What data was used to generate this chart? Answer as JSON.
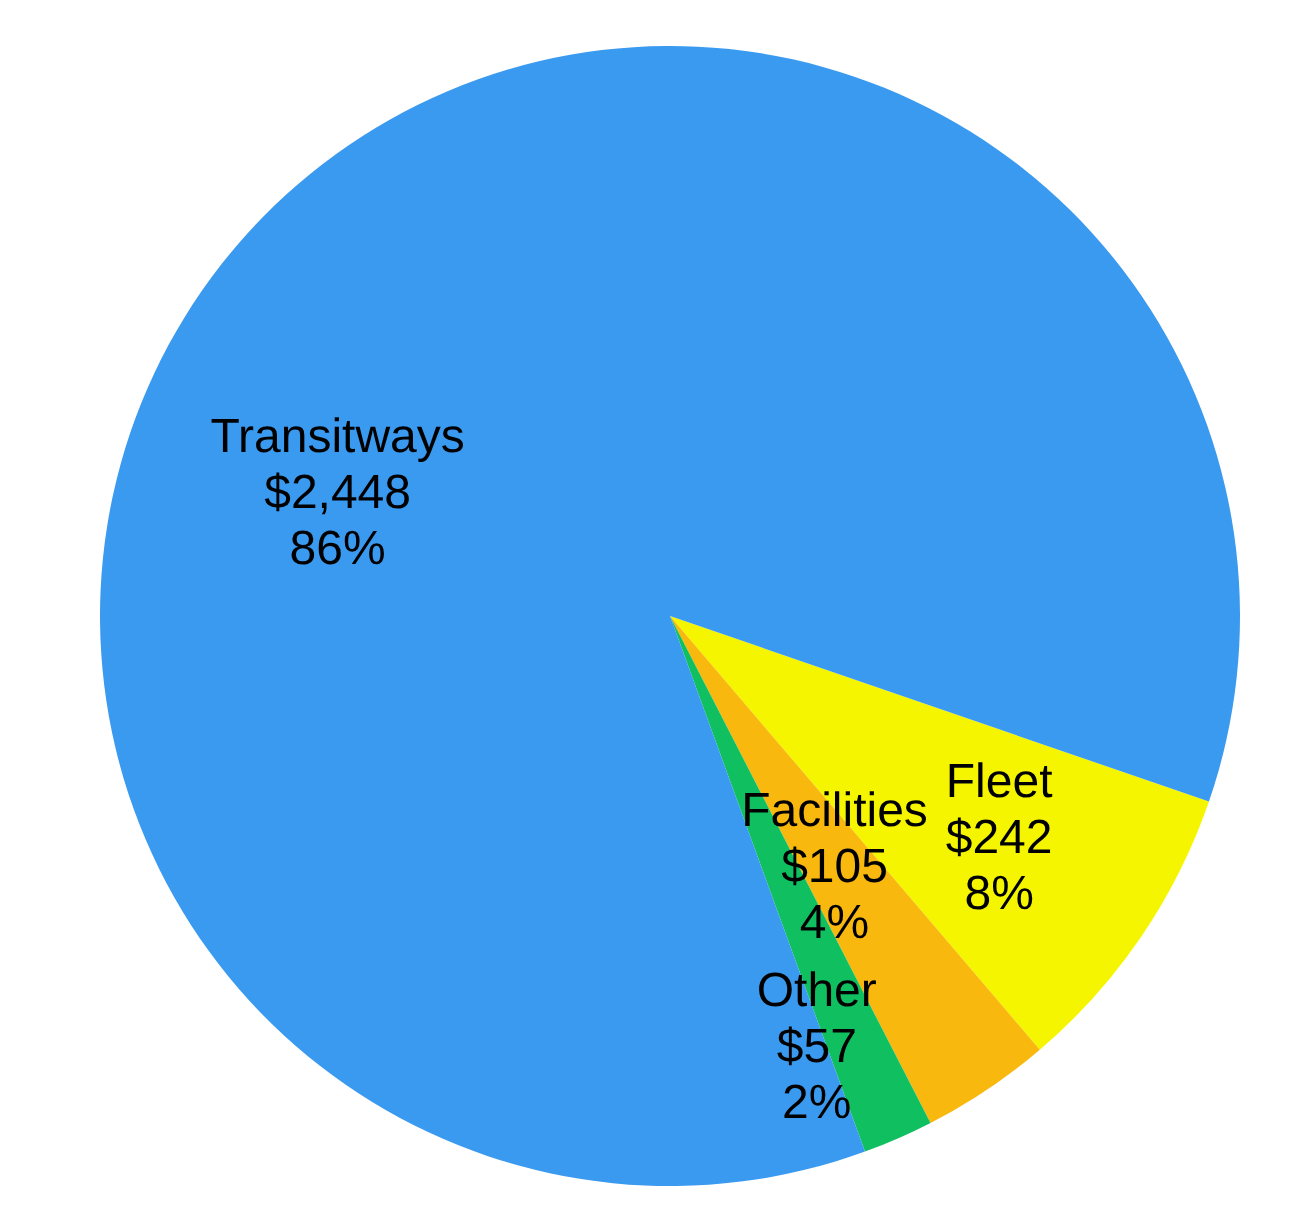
{
  "chart_data": {
    "type": "pie",
    "categories": [
      "Fleet",
      "Facilities",
      "Other",
      "Transitways"
    ],
    "values": [
      242,
      105,
      57,
      2448
    ],
    "colors": [
      "#f5f500",
      "#f9b80e",
      "#10c060",
      "#3a9af0"
    ],
    "value_labels": [
      "$242\n8%",
      "$105\n4%",
      "$57\n2%",
      "$2,448\n86%"
    ]
  }
}
